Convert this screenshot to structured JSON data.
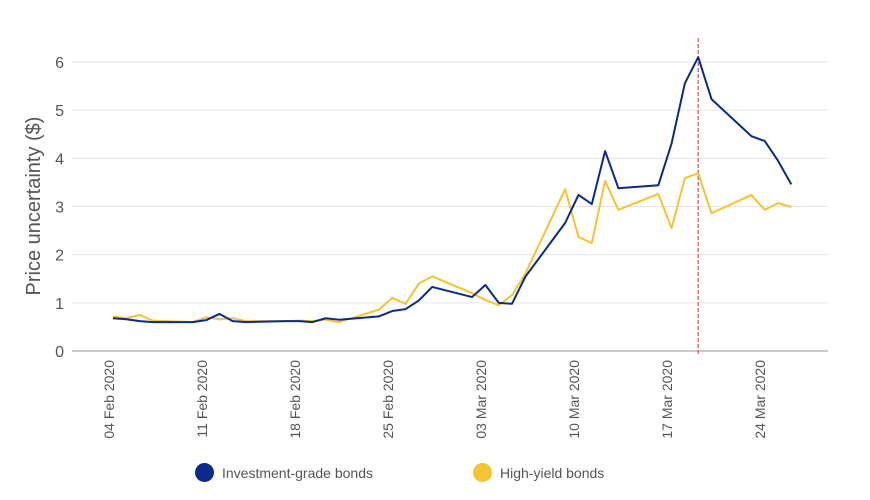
{
  "chart_data": {
    "type": "line",
    "title": "",
    "xlabel": "",
    "ylabel": "Price uncertainty ($)",
    "ylim": [
      0,
      6
    ],
    "yticks": [
      "0",
      "1",
      "2",
      "3",
      "4",
      "5",
      "6"
    ],
    "xticks": [
      "04 Feb 2020",
      "11 Feb 2020",
      "18 Feb 2020",
      "25 Feb 2020",
      "03 Mar 2020",
      "10 Mar 2020",
      "17 Mar 2020",
      "24 Mar 2020"
    ],
    "grid": true,
    "legend_position": "bottom",
    "marker_line": {
      "date": "2020-03-19",
      "color": "#e8534f",
      "style": "dashed"
    },
    "series": [
      {
        "name": "Investment-grade bonds",
        "color": "#0a2a8c",
        "points": [
          [
            "2020-02-04",
            0.68
          ],
          [
            "2020-02-05",
            0.66
          ],
          [
            "2020-02-06",
            0.62
          ],
          [
            "2020-02-07",
            0.6
          ],
          [
            "2020-02-10",
            0.6
          ],
          [
            "2020-02-11",
            0.64
          ],
          [
            "2020-02-12",
            0.77
          ],
          [
            "2020-02-13",
            0.62
          ],
          [
            "2020-02-14",
            0.6
          ],
          [
            "2020-02-17",
            0.62
          ],
          [
            "2020-02-18",
            0.62
          ],
          [
            "2020-02-19",
            0.6
          ],
          [
            "2020-02-20",
            0.68
          ],
          [
            "2020-02-21",
            0.65
          ],
          [
            "2020-02-24",
            0.72
          ],
          [
            "2020-02-25",
            0.83
          ],
          [
            "2020-02-26",
            0.87
          ],
          [
            "2020-02-27",
            1.05
          ],
          [
            "2020-02-28",
            1.33
          ],
          [
            "2020-03-02",
            1.12
          ],
          [
            "2020-03-03",
            1.37
          ],
          [
            "2020-03-04",
            1.0
          ],
          [
            "2020-03-05",
            0.98
          ],
          [
            "2020-03-06",
            1.54
          ],
          [
            "2020-03-09",
            2.66
          ],
          [
            "2020-03-10",
            3.24
          ],
          [
            "2020-03-11",
            3.05
          ],
          [
            "2020-03-12",
            4.15
          ],
          [
            "2020-03-13",
            3.38
          ],
          [
            "2020-03-16",
            3.44
          ],
          [
            "2020-03-17",
            4.31
          ],
          [
            "2020-03-18",
            5.56
          ],
          [
            "2020-03-19",
            6.1
          ],
          [
            "2020-03-20",
            5.23
          ],
          [
            "2020-03-23",
            4.46
          ],
          [
            "2020-03-24",
            4.36
          ],
          [
            "2020-03-25",
            3.95
          ],
          [
            "2020-03-26",
            3.46
          ]
        ]
      },
      {
        "name": "High-yield bonds",
        "color": "#f5c431",
        "points": [
          [
            "2020-02-04",
            0.72
          ],
          [
            "2020-02-05",
            0.68
          ],
          [
            "2020-02-06",
            0.75
          ],
          [
            "2020-02-07",
            0.63
          ],
          [
            "2020-02-10",
            0.6
          ],
          [
            "2020-02-11",
            0.7
          ],
          [
            "2020-02-12",
            0.66
          ],
          [
            "2020-02-13",
            0.68
          ],
          [
            "2020-02-14",
            0.62
          ],
          [
            "2020-02-17",
            0.62
          ],
          [
            "2020-02-18",
            0.63
          ],
          [
            "2020-02-19",
            0.62
          ],
          [
            "2020-02-20",
            0.65
          ],
          [
            "2020-02-21",
            0.6
          ],
          [
            "2020-02-24",
            0.86
          ],
          [
            "2020-02-25",
            1.1
          ],
          [
            "2020-02-26",
            0.98
          ],
          [
            "2020-02-27",
            1.4
          ],
          [
            "2020-02-28",
            1.55
          ],
          [
            "2020-03-02",
            1.2
          ],
          [
            "2020-03-03",
            1.06
          ],
          [
            "2020-03-04",
            0.95
          ],
          [
            "2020-03-05",
            1.16
          ],
          [
            "2020-03-06",
            1.6
          ],
          [
            "2020-03-09",
            3.36
          ],
          [
            "2020-03-10",
            2.37
          ],
          [
            "2020-03-11",
            2.24
          ],
          [
            "2020-03-12",
            3.53
          ],
          [
            "2020-03-13",
            2.93
          ],
          [
            "2020-03-16",
            3.26
          ],
          [
            "2020-03-17",
            2.55
          ],
          [
            "2020-03-18",
            3.59
          ],
          [
            "2020-03-19",
            3.69
          ],
          [
            "2020-03-20",
            2.86
          ],
          [
            "2020-03-23",
            3.24
          ],
          [
            "2020-03-24",
            2.93
          ],
          [
            "2020-03-25",
            3.07
          ],
          [
            "2020-03-26",
            2.99
          ]
        ]
      }
    ]
  }
}
